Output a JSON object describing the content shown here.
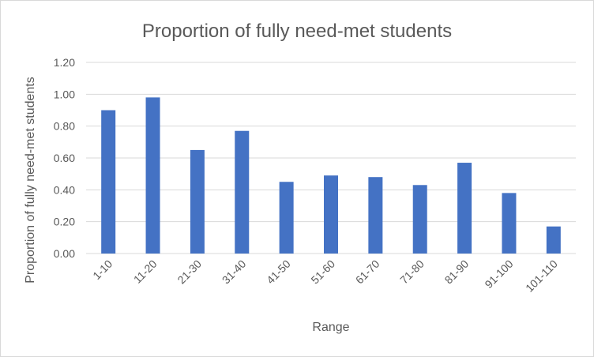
{
  "chart_data": {
    "type": "bar",
    "title": "Proportion of fully need-met students",
    "xlabel": "Range",
    "ylabel": "Proportion of fully need-met students",
    "categories": [
      "1-10",
      "11-20",
      "21-30",
      "31-40",
      "41-50",
      "51-60",
      "61-70",
      "71-80",
      "81-90",
      "91-100",
      "101-110"
    ],
    "values": [
      0.9,
      0.98,
      0.65,
      0.77,
      0.45,
      0.49,
      0.48,
      0.43,
      0.57,
      0.38,
      0.17
    ],
    "ylim": [
      0,
      1.2
    ],
    "yticks": [
      "0.00",
      "0.20",
      "0.40",
      "0.60",
      "0.80",
      "1.00",
      "1.20"
    ],
    "grid": true,
    "legend": "none",
    "bar_color": "#4472c4",
    "grid_color": "#d9d9d9"
  }
}
